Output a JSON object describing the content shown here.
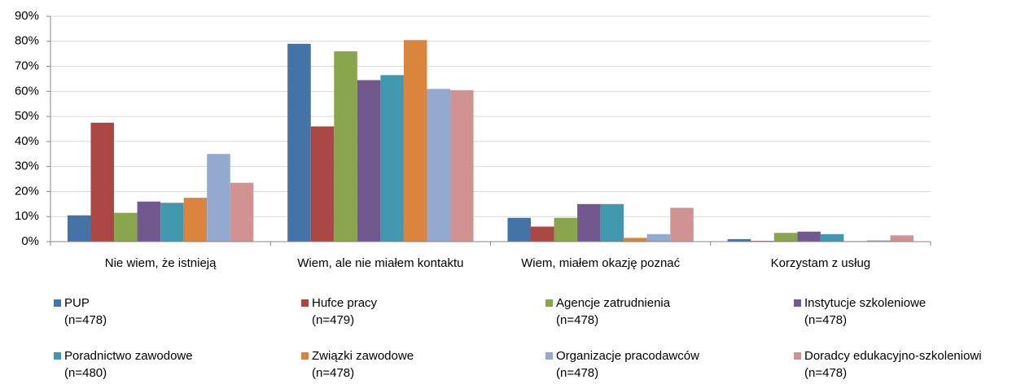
{
  "chart_data": {
    "type": "bar",
    "categories": [
      "Nie wiem, że istnieją",
      "Wiem, ale nie miałem kontaktu",
      "Wiem, miałem okazję poznać",
      "Korzystam z usług"
    ],
    "series": [
      {
        "name": "PUP",
        "sample": "(n=478)",
        "color": "#4572a7",
        "values": [
          10.5,
          79,
          9.5,
          1
        ]
      },
      {
        "name": "Hufce pracy",
        "sample": "(n=479)",
        "color": "#aa4643",
        "values": [
          47.5,
          46,
          6,
          0.3
        ]
      },
      {
        "name": "Agencje zatrudnienia",
        "sample": "(n=478)",
        "color": "#89a54e",
        "values": [
          11.5,
          76,
          9.5,
          3.5
        ]
      },
      {
        "name": "Instytucje szkoleniowe",
        "sample": "(n=478)",
        "color": "#71588f",
        "values": [
          16,
          64.5,
          15,
          4
        ]
      },
      {
        "name": "Poradnictwo zawodowe",
        "sample": "(n=480)",
        "color": "#4198af",
        "values": [
          15.5,
          66.5,
          15,
          3
        ]
      },
      {
        "name": "Związki zawodowe",
        "sample": "(n=478)",
        "color": "#db843d",
        "values": [
          17.5,
          80.5,
          1.5,
          0.2
        ]
      },
      {
        "name": "Organizacje pracodawców",
        "sample": "(n=478)",
        "color": "#93a9cf",
        "values": [
          35,
          61,
          3,
          0.5
        ]
      },
      {
        "name": "Doradcy edukacyjno-szkoleniowi",
        "sample": "(n=478)",
        "color": "#d19392",
        "values": [
          23.5,
          60.5,
          13.5,
          2.5
        ]
      }
    ],
    "ylim": [
      0,
      90
    ],
    "yticks": [
      {
        "value": 0,
        "label": "0%"
      },
      {
        "value": 10,
        "label": "10%"
      },
      {
        "value": 20,
        "label": "20%"
      },
      {
        "value": 30,
        "label": "30%"
      },
      {
        "value": 40,
        "label": "40%"
      },
      {
        "value": 50,
        "label": "50%"
      },
      {
        "value": 60,
        "label": "60%"
      },
      {
        "value": 70,
        "label": "70%"
      },
      {
        "value": 80,
        "label": "80%"
      },
      {
        "value": 90,
        "label": "90%"
      }
    ],
    "grid": true,
    "legend": "bottom"
  }
}
